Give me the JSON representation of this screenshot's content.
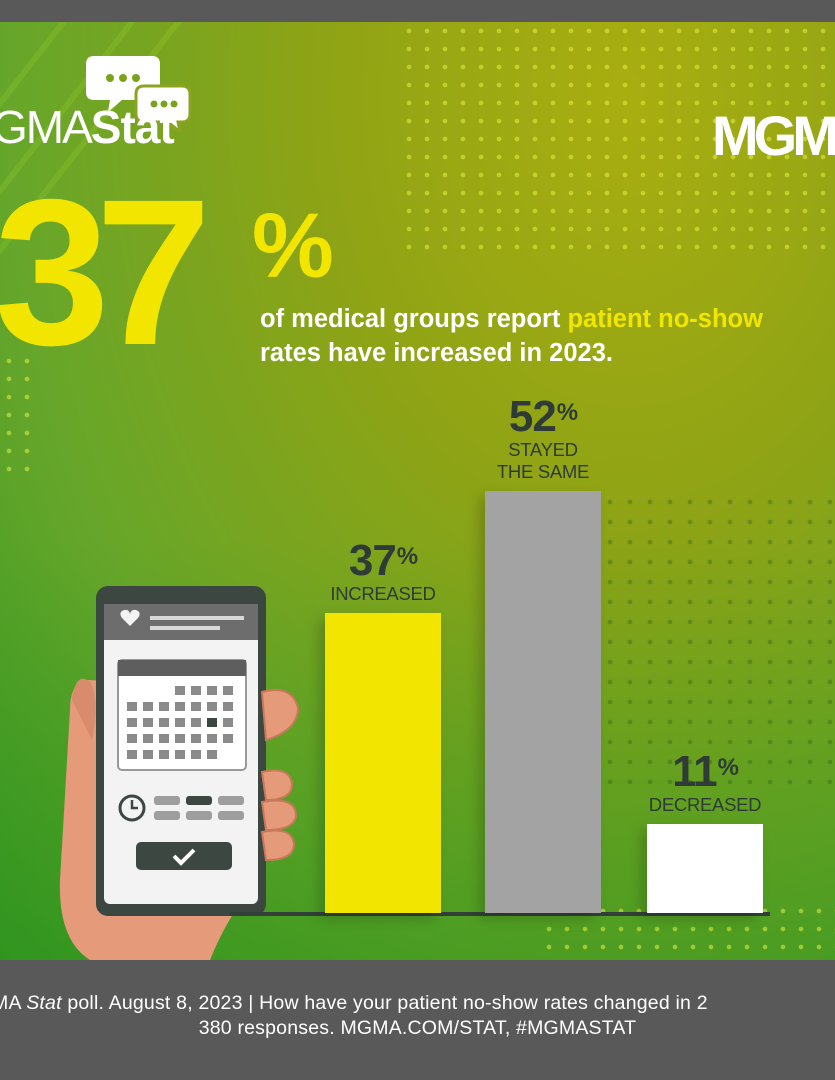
{
  "brand": {
    "logo_text_light": "GMA",
    "logo_text_bold": "Stat",
    "corner_logo": "MGM"
  },
  "headline": {
    "big_number": "37",
    "big_percent": "%",
    "text_plain": "of medical groups report ",
    "text_highlight_1": "patient no-show",
    "text_highlight_2": "rates have increased in 2023."
  },
  "chart_data": {
    "type": "bar",
    "categories": [
      "INCREASED",
      "STAYED THE SAME",
      "DECREASED"
    ],
    "values": [
      37,
      52,
      11
    ],
    "value_labels": [
      "37",
      "52",
      "11"
    ],
    "percent_sign": "%",
    "label_lines": [
      [
        "INCREASED"
      ],
      [
        "STAYED",
        "THE SAME"
      ],
      [
        "DECREASED"
      ]
    ],
    "colors": [
      "#f2e600",
      "#a3a3a3",
      "#ffffff"
    ],
    "ylim": [
      0,
      52
    ],
    "grid": false
  },
  "footer": {
    "line1_prefix": "MA ",
    "line1_italic": "Stat",
    "line1_rest": " poll. August 8, 2023  |  How have your patient no-show rates changed in 2",
    "line2": "380 responses. MGMA.COM/STAT, #MGMASTAT"
  },
  "icons": [
    "chat-bubbles-icon",
    "heart-icon",
    "calendar-icon",
    "clock-icon",
    "checkmark-icon"
  ]
}
